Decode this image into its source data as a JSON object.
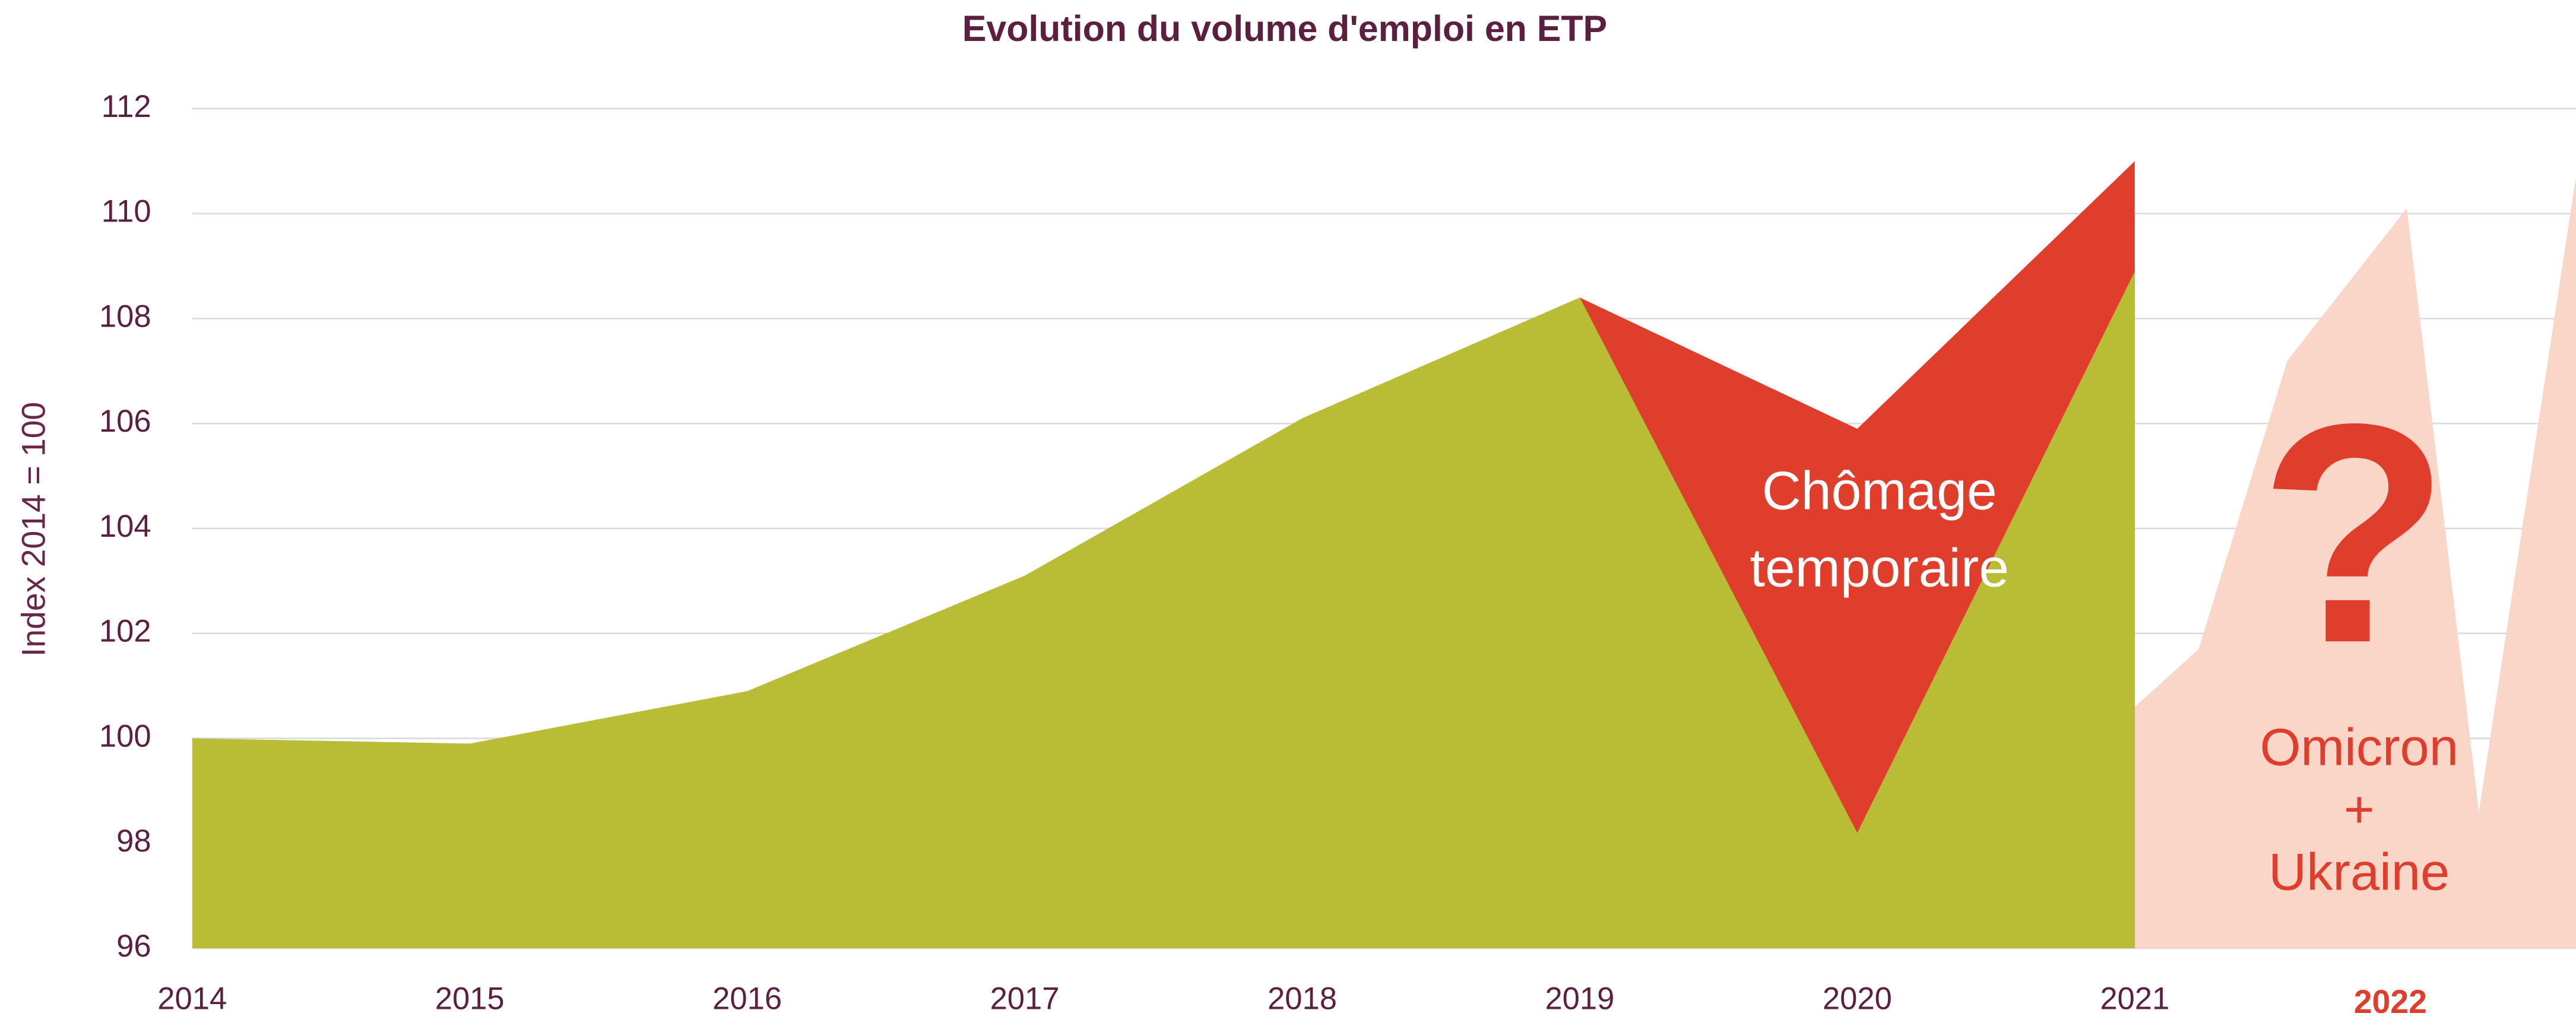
{
  "chart_data": {
    "type": "area",
    "title": "Evolution du volume d'emploi en ETP",
    "y_label": "Index 2014 = 100",
    "period_label": "2022",
    "annotations": {
      "temporary": [
        "Chômage",
        "temporaire"
      ],
      "question": "?",
      "outlook": [
        "Omicron",
        "+",
        "Ukraine"
      ]
    },
    "xlim": [
      2014,
      2022.59
    ],
    "xticks": [
      2014,
      2015,
      2016,
      2017,
      2018,
      2019,
      2020,
      2021
    ],
    "ylim": [
      96,
      112
    ],
    "yticks": [
      96,
      98,
      100,
      102,
      104,
      106,
      108,
      110,
      112
    ],
    "grid": true,
    "series": [
      {
        "color": "#f9d6c8",
        "x": [
          2021,
          2021.23,
          2021.55,
          2021.98,
          2022.24,
          2022.59
        ],
        "values": [
          100.6,
          101.7,
          107.2,
          110.1,
          98.6,
          110.7
        ]
      },
      {
        "color": "#e03e2d",
        "x": [
          2019,
          2020,
          2021
        ],
        "values": [
          108.4,
          105.9,
          111.0
        ]
      },
      {
        "color": "#b9bc35",
        "x": [
          2014,
          2015,
          2016,
          2017,
          2018,
          2019,
          2020,
          2021
        ],
        "values": [
          100.0,
          99.9,
          100.9,
          103.1,
          106.1,
          108.4,
          98.2,
          108.9
        ]
      }
    ]
  }
}
